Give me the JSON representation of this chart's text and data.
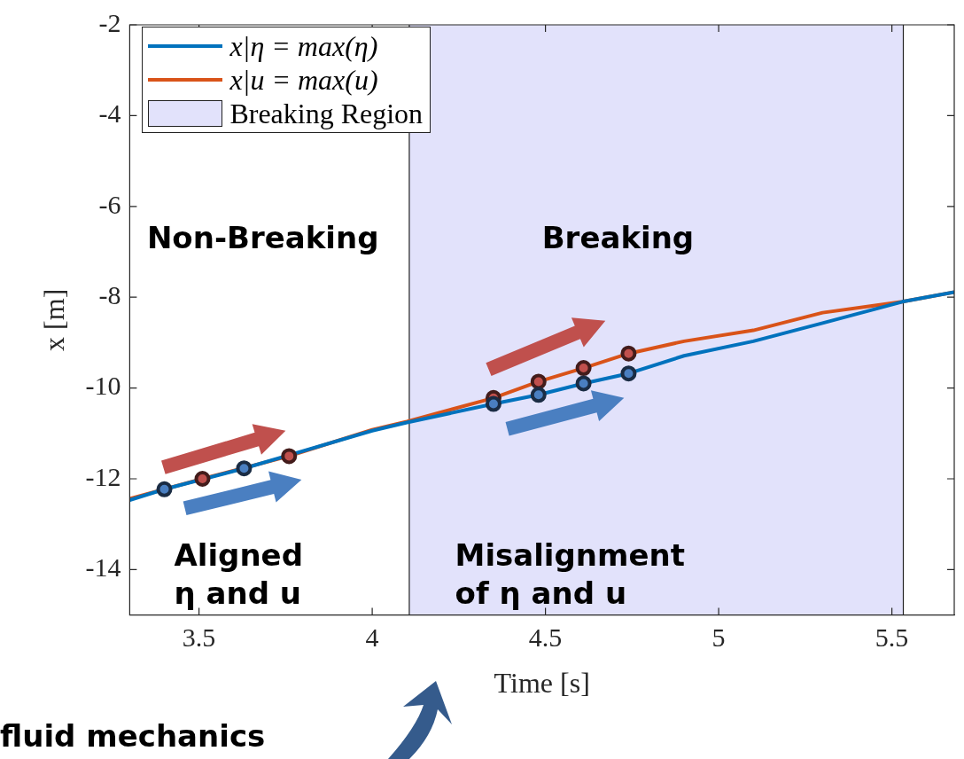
{
  "chart_data": {
    "type": "line",
    "xlabel": "Time [s]",
    "ylabel": "x [m]",
    "xlim": [
      3.3,
      5.68
    ],
    "xticks": [
      3.5,
      4,
      4.5,
      5,
      5.5
    ],
    "ylim": [
      -15,
      -2
    ],
    "yticks": [
      -14,
      -12,
      -10,
      -8,
      -6,
      -4,
      -2
    ],
    "grid": false,
    "legend": "top left",
    "series": [
      {
        "name": "x|η = max(η)",
        "marker": "none",
        "color": "#0072bd",
        "x": [
          3.3,
          3.4,
          3.63,
          4.0,
          4.1,
          4.35,
          4.48,
          4.61,
          4.74,
          4.9,
          5.1,
          5.3,
          5.53,
          5.68
        ],
        "values": [
          -12.47,
          -12.23,
          -11.77,
          -10.94,
          -10.76,
          -10.35,
          -10.15,
          -9.9,
          -9.68,
          -9.29,
          -8.97,
          -8.57,
          -8.1,
          -7.89
        ]
      },
      {
        "name": "x|u = max(u)",
        "marker": "none",
        "color": "#d95319",
        "x": [
          3.3,
          3.51,
          3.76,
          4.0,
          4.1,
          4.35,
          4.48,
          4.61,
          4.74,
          4.9,
          5.1,
          5.3,
          5.53,
          5.68
        ],
        "values": [
          -12.44,
          -12.0,
          -11.5,
          -10.92,
          -10.74,
          -10.22,
          -9.86,
          -9.56,
          -9.24,
          -8.97,
          -8.73,
          -8.34,
          -8.1,
          -7.89
        ]
      },
      {
        "type": "scatter",
        "marker": "circle",
        "color": "#4a7fc1",
        "x": [
          3.4,
          3.63,
          4.35,
          4.48,
          4.61,
          4.74
        ],
        "values": [
          -12.23,
          -11.77,
          -10.35,
          -10.15,
          -9.9,
          -9.68
        ]
      },
      {
        "type": "scatter",
        "marker": "circle",
        "color": "#c0504d",
        "x": [
          3.51,
          3.76,
          4.35,
          4.48,
          4.61,
          4.74
        ],
        "values": [
          -12.0,
          -11.5,
          -10.22,
          -9.86,
          -9.56,
          -9.24
        ]
      }
    ],
    "bands": [
      {
        "axis": "x",
        "from": 4.107,
        "to": 5.533,
        "label": "Breaking Region",
        "color": "#e2e2fb"
      }
    ],
    "ref_lines": [
      {
        "axis": "x",
        "value": 4.107,
        "color": "#222222"
      },
      {
        "axis": "x",
        "value": 5.533,
        "color": "#222222"
      }
    ],
    "annotations": [
      "Non-Breaking",
      "Breaking",
      "Aligned η and u",
      "Misalignment of η and u",
      "fluid mechanics"
    ]
  }
}
